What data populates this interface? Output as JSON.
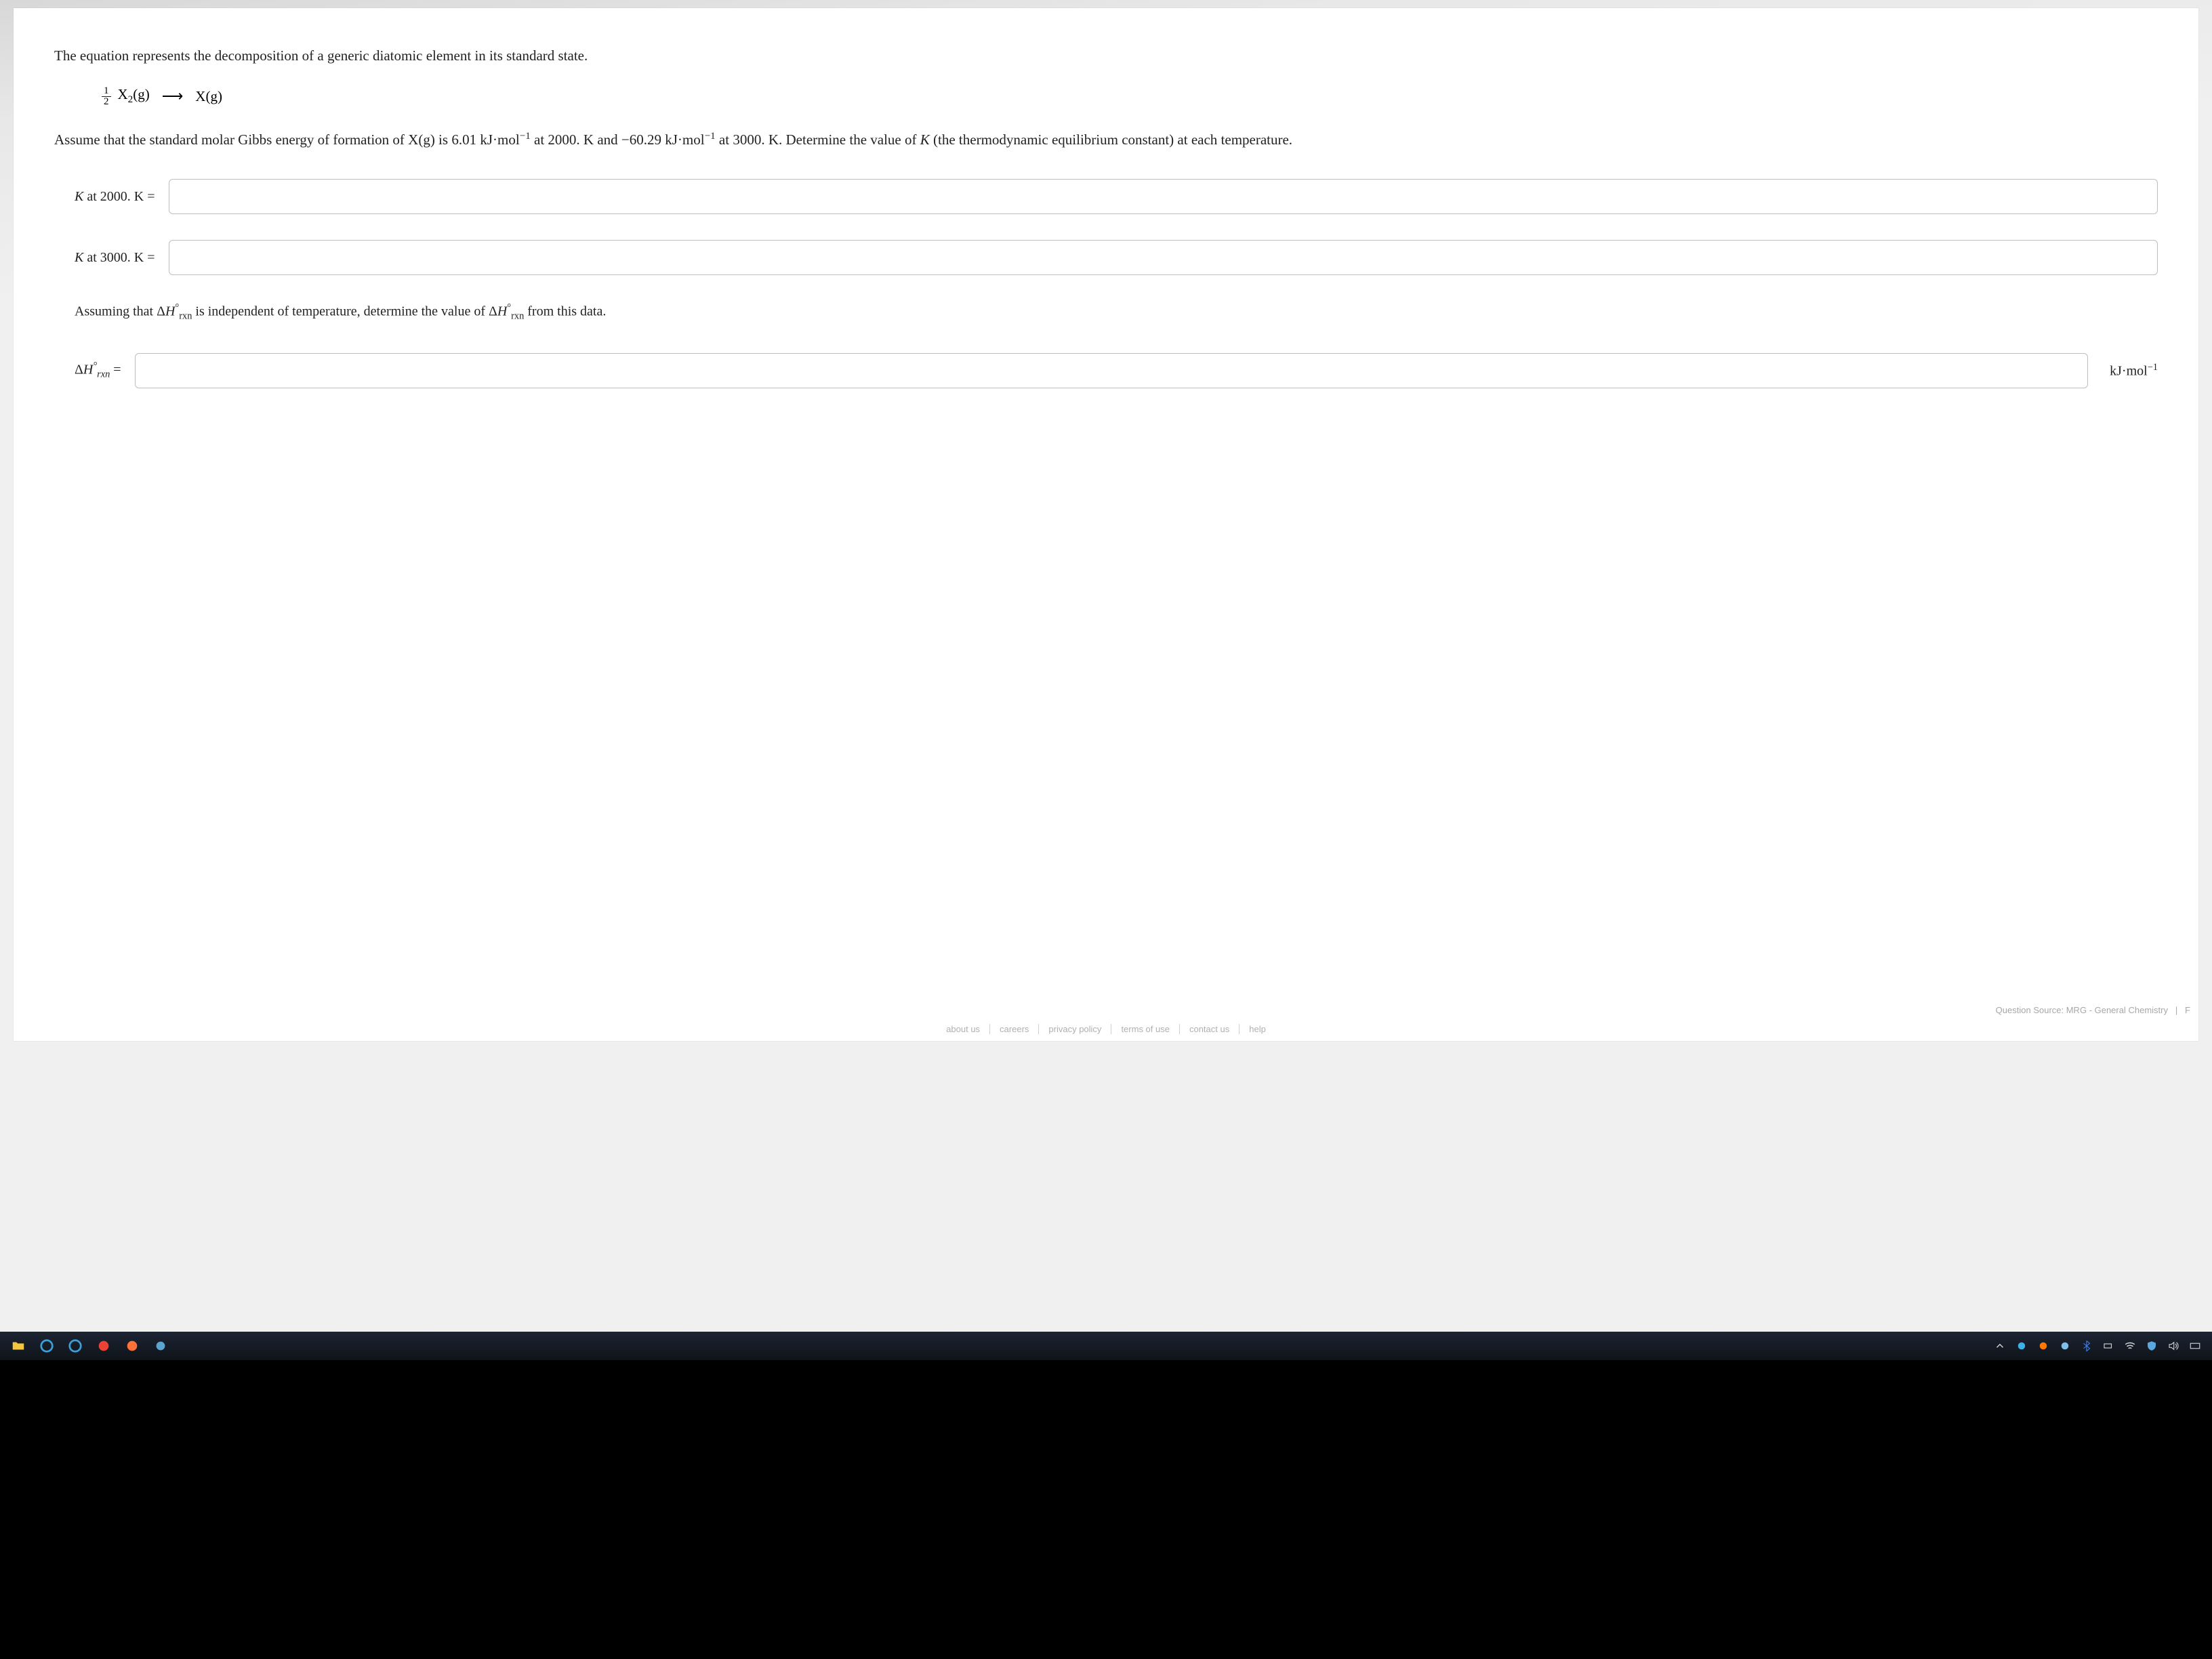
{
  "question": {
    "intro": "The equation represents the decomposition of a generic diatomic element in its standard state.",
    "equation": {
      "lhs_fraction_num": "1",
      "lhs_fraction_den": "2",
      "lhs_species": "X",
      "lhs_sub": "2",
      "lhs_state": "(g)",
      "arrow": "⟶",
      "rhs_species": "X(g)"
    },
    "body_part1": "Assume that the standard molar Gibbs energy of formation of X(g) is ",
    "dg_2000": "6.01 kJ·mol",
    "dg_2000_exp": "−1",
    "body_mid1": " at 2000. K and ",
    "dg_3000": "−60.29 kJ·mol",
    "dg_3000_exp": "−1",
    "body_mid2": " at 3000. K. Determine the value of ",
    "K_symbol": "K",
    "body_end": " (the thermodynamic equilibrium constant) at each temperature.",
    "inputs": {
      "k2000_label_pre": "K",
      "k2000_label_txt": " at 2000. K =",
      "k3000_label_pre": "K",
      "k3000_label_txt": " at 3000. K =",
      "dh_prompt_pre": "Assuming that Δ",
      "dh_prompt_H": "H",
      "dh_prompt_sub": "rxn",
      "dh_prompt_sup": "°",
      "dh_prompt_mid": " is independent of temperature, determine the value of Δ",
      "dh_prompt_end": " from this data.",
      "dh_label_delta": "Δ",
      "dh_label_H": "H",
      "dh_label_sub": "rxn",
      "dh_label_sup": "°",
      "dh_label_eq": " =",
      "dh_unit": "kJ·mol",
      "dh_unit_exp": "−1"
    },
    "source": "Question Source: MRG - General Chemistry",
    "source_tail": "F"
  },
  "footer": {
    "links": [
      "about us",
      "careers",
      "privacy policy",
      "terms of use",
      "contact us",
      "help"
    ]
  },
  "taskbar": {
    "icons": [
      {
        "name": "file-explorer-icon",
        "color": "#f5c542"
      },
      {
        "name": "edge-legacy-icon",
        "color": "#3aa0da"
      },
      {
        "name": "edge-icon",
        "color": "#3aa0da"
      },
      {
        "name": "chrome-icon",
        "color": "#ea4335"
      },
      {
        "name": "firefox-icon",
        "color": "#ff7139"
      },
      {
        "name": "browser-icon",
        "color": "#5ba4cf"
      }
    ],
    "tray": [
      {
        "name": "chevron-up-icon",
        "color": "#cfd3d8"
      },
      {
        "name": "mail-m-icon",
        "color": "#3bb1e8"
      },
      {
        "name": "avast-icon",
        "color": "#ff7800"
      },
      {
        "name": "weather-icon",
        "color": "#7fbee8"
      },
      {
        "name": "bluetooth-icon",
        "color": "#3a82f0"
      },
      {
        "name": "battery-icon",
        "color": "#cfd3d8"
      },
      {
        "name": "wifi-icon",
        "color": "#cfd3d8"
      },
      {
        "name": "shield-icon",
        "color": "#5aa8e0"
      },
      {
        "name": "volume-icon",
        "color": "#cfd3d8"
      },
      {
        "name": "keyboard-icon",
        "color": "#cfd3d8"
      }
    ]
  },
  "colors": {
    "page_bg": "#ffffff",
    "screen_gradient_top": "#d8d8d8",
    "text": "#222222",
    "input_border": "#bfbfbf",
    "footer_text": "#b0b0b0",
    "taskbar_bg": "#111a26"
  }
}
